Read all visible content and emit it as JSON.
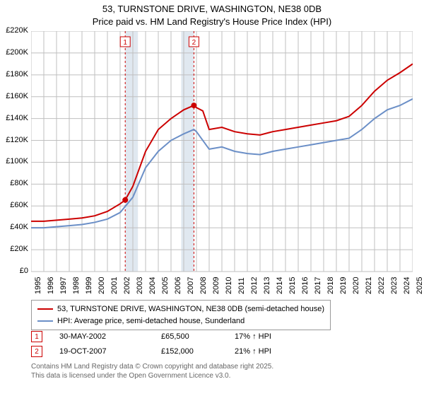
{
  "title_line1": "53, TURNSTONE DRIVE, WASHINGTON, NE38 0DB",
  "title_line2": "Price paid vs. HM Land Registry's House Price Index (HPI)",
  "chart": {
    "type": "line",
    "background_color": "#ffffff",
    "grid_color": "#bfbfbf",
    "band_color": "#e0e8f0",
    "x_years": [
      1995,
      1996,
      1997,
      1998,
      1999,
      2000,
      2001,
      2002,
      2003,
      2004,
      2005,
      2006,
      2007,
      2008,
      2009,
      2010,
      2011,
      2012,
      2013,
      2014,
      2015,
      2016,
      2017,
      2018,
      2019,
      2020,
      2021,
      2022,
      2023,
      2024,
      2025
    ],
    "y_min": 0,
    "y_max": 220000,
    "y_tick_step": 20000,
    "y_tick_labels": [
      "£0",
      "£20K",
      "£40K",
      "£60K",
      "£80K",
      "£100K",
      "£120K",
      "£140K",
      "£160K",
      "£180K",
      "£200K",
      "£220K"
    ],
    "highlight_bands": [
      {
        "start": 2002.4,
        "end": 2003.4
      },
      {
        "start": 2006.8,
        "end": 2007.8
      }
    ],
    "sale_markers": [
      {
        "idx": "1",
        "x": 2002.4
      },
      {
        "idx": "2",
        "x": 2007.8
      }
    ],
    "sale_points": [
      {
        "x": 2002.4,
        "y": 65500
      },
      {
        "x": 2007.8,
        "y": 152000
      }
    ],
    "series": [
      {
        "name": "53, TURNSTONE DRIVE, WASHINGTON, NE38 0DB (semi-detached house)",
        "color": "#cc0000",
        "line_width": 2,
        "data": [
          [
            1995,
            46000
          ],
          [
            1996,
            46000
          ],
          [
            1997,
            47000
          ],
          [
            1998,
            48000
          ],
          [
            1999,
            49000
          ],
          [
            2000,
            51000
          ],
          [
            2001,
            55000
          ],
          [
            2002,
            62000
          ],
          [
            2002.4,
            65500
          ],
          [
            2003,
            78000
          ],
          [
            2004,
            110000
          ],
          [
            2005,
            130000
          ],
          [
            2006,
            140000
          ],
          [
            2007,
            148000
          ],
          [
            2007.8,
            152000
          ],
          [
            2008,
            150000
          ],
          [
            2008.5,
            147000
          ],
          [
            2009,
            130000
          ],
          [
            2010,
            132000
          ],
          [
            2011,
            128000
          ],
          [
            2012,
            126000
          ],
          [
            2013,
            125000
          ],
          [
            2014,
            128000
          ],
          [
            2015,
            130000
          ],
          [
            2016,
            132000
          ],
          [
            2017,
            134000
          ],
          [
            2018,
            136000
          ],
          [
            2019,
            138000
          ],
          [
            2020,
            142000
          ],
          [
            2021,
            152000
          ],
          [
            2022,
            165000
          ],
          [
            2023,
            175000
          ],
          [
            2024,
            182000
          ],
          [
            2025,
            190000
          ]
        ]
      },
      {
        "name": "HPI: Average price, semi-detached house, Sunderland",
        "color": "#6b8fc7",
        "line_width": 2,
        "data": [
          [
            1995,
            40000
          ],
          [
            1996,
            40000
          ],
          [
            1997,
            41000
          ],
          [
            1998,
            42000
          ],
          [
            1999,
            43000
          ],
          [
            2000,
            45000
          ],
          [
            2001,
            48000
          ],
          [
            2002,
            54000
          ],
          [
            2003,
            68000
          ],
          [
            2004,
            95000
          ],
          [
            2005,
            110000
          ],
          [
            2006,
            120000
          ],
          [
            2007,
            126000
          ],
          [
            2007.8,
            130000
          ],
          [
            2008,
            128000
          ],
          [
            2009,
            112000
          ],
          [
            2010,
            114000
          ],
          [
            2011,
            110000
          ],
          [
            2012,
            108000
          ],
          [
            2013,
            107000
          ],
          [
            2014,
            110000
          ],
          [
            2015,
            112000
          ],
          [
            2016,
            114000
          ],
          [
            2017,
            116000
          ],
          [
            2018,
            118000
          ],
          [
            2019,
            120000
          ],
          [
            2020,
            122000
          ],
          [
            2021,
            130000
          ],
          [
            2022,
            140000
          ],
          [
            2023,
            148000
          ],
          [
            2024,
            152000
          ],
          [
            2025,
            158000
          ]
        ]
      }
    ]
  },
  "legend": {
    "items": [
      {
        "color": "#cc0000",
        "label": "53, TURNSTONE DRIVE, WASHINGTON, NE38 0DB (semi-detached house)"
      },
      {
        "color": "#6b8fc7",
        "label": "HPI: Average price, semi-detached house, Sunderland"
      }
    ]
  },
  "sales": [
    {
      "idx": "1",
      "date": "30-MAY-2002",
      "price": "£65,500",
      "hpi": "17% ↑ HPI"
    },
    {
      "idx": "2",
      "date": "19-OCT-2007",
      "price": "£152,000",
      "hpi": "21% ↑ HPI"
    }
  ],
  "footer_line1": "Contains HM Land Registry data © Crown copyright and database right 2025.",
  "footer_line2": "This data is licensed under the Open Government Licence v3.0.",
  "marker_point_color": "#cc0000",
  "marker_point_radius": 4,
  "marker_line_color": "#cc0000",
  "marker_line_dash": "3,3"
}
